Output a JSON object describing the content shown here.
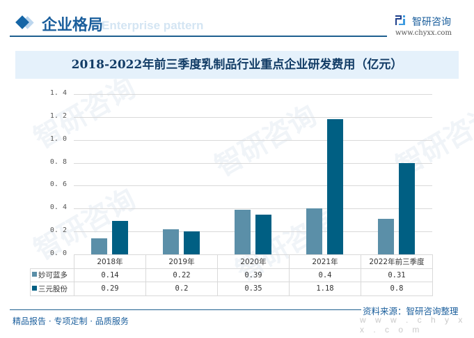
{
  "header": {
    "section_title": "企业格局",
    "section_subtitle_watermark": "Enterprise pattern",
    "logo_icon": "chyxx-logo-icon",
    "logo_text": "智研咨询",
    "logo_url": "www.chyxx.com"
  },
  "chart_title": "2018-2022年前三季度乳制品行业重点企业研发费用（亿元）",
  "chart_data": {
    "type": "bar",
    "title": "2018-2022年前三季度乳制品行业重点企业研发费用（亿元）",
    "xlabel": "",
    "ylabel": "",
    "ylim": [
      0,
      1.4
    ],
    "yticks": [
      "0.0",
      "0.2",
      "0.4",
      "0.6",
      "0.8",
      "1.0",
      "1.2",
      "1.4"
    ],
    "grid": true,
    "legend_position": "data-table",
    "categories": [
      "2018年",
      "2019年",
      "2020年",
      "2021年",
      "2022年前三季度"
    ],
    "series": [
      {
        "name": "妙可蓝多",
        "color": "#5b8fa8",
        "values": [
          0.14,
          0.22,
          0.39,
          0.4,
          0.31
        ],
        "labels": [
          "0.14",
          "0.22",
          "0.39",
          "0.4",
          "0.31"
        ]
      },
      {
        "name": "三元股份",
        "color": "#005f83",
        "values": [
          0.29,
          0.2,
          0.35,
          1.18,
          0.8
        ],
        "labels": [
          "0.29",
          "0.2",
          "0.35",
          "1.18",
          "0.8"
        ]
      }
    ]
  },
  "footer": {
    "slogan": "精品报告 · 专项定制 · 品质服务",
    "source": "资料来源：智研咨询整理",
    "url": "w w w . c h y x x . c o m"
  },
  "watermark": {
    "text": "智研咨询",
    "subtext": "INTELLIGENCE RESEARCH GROUP"
  }
}
